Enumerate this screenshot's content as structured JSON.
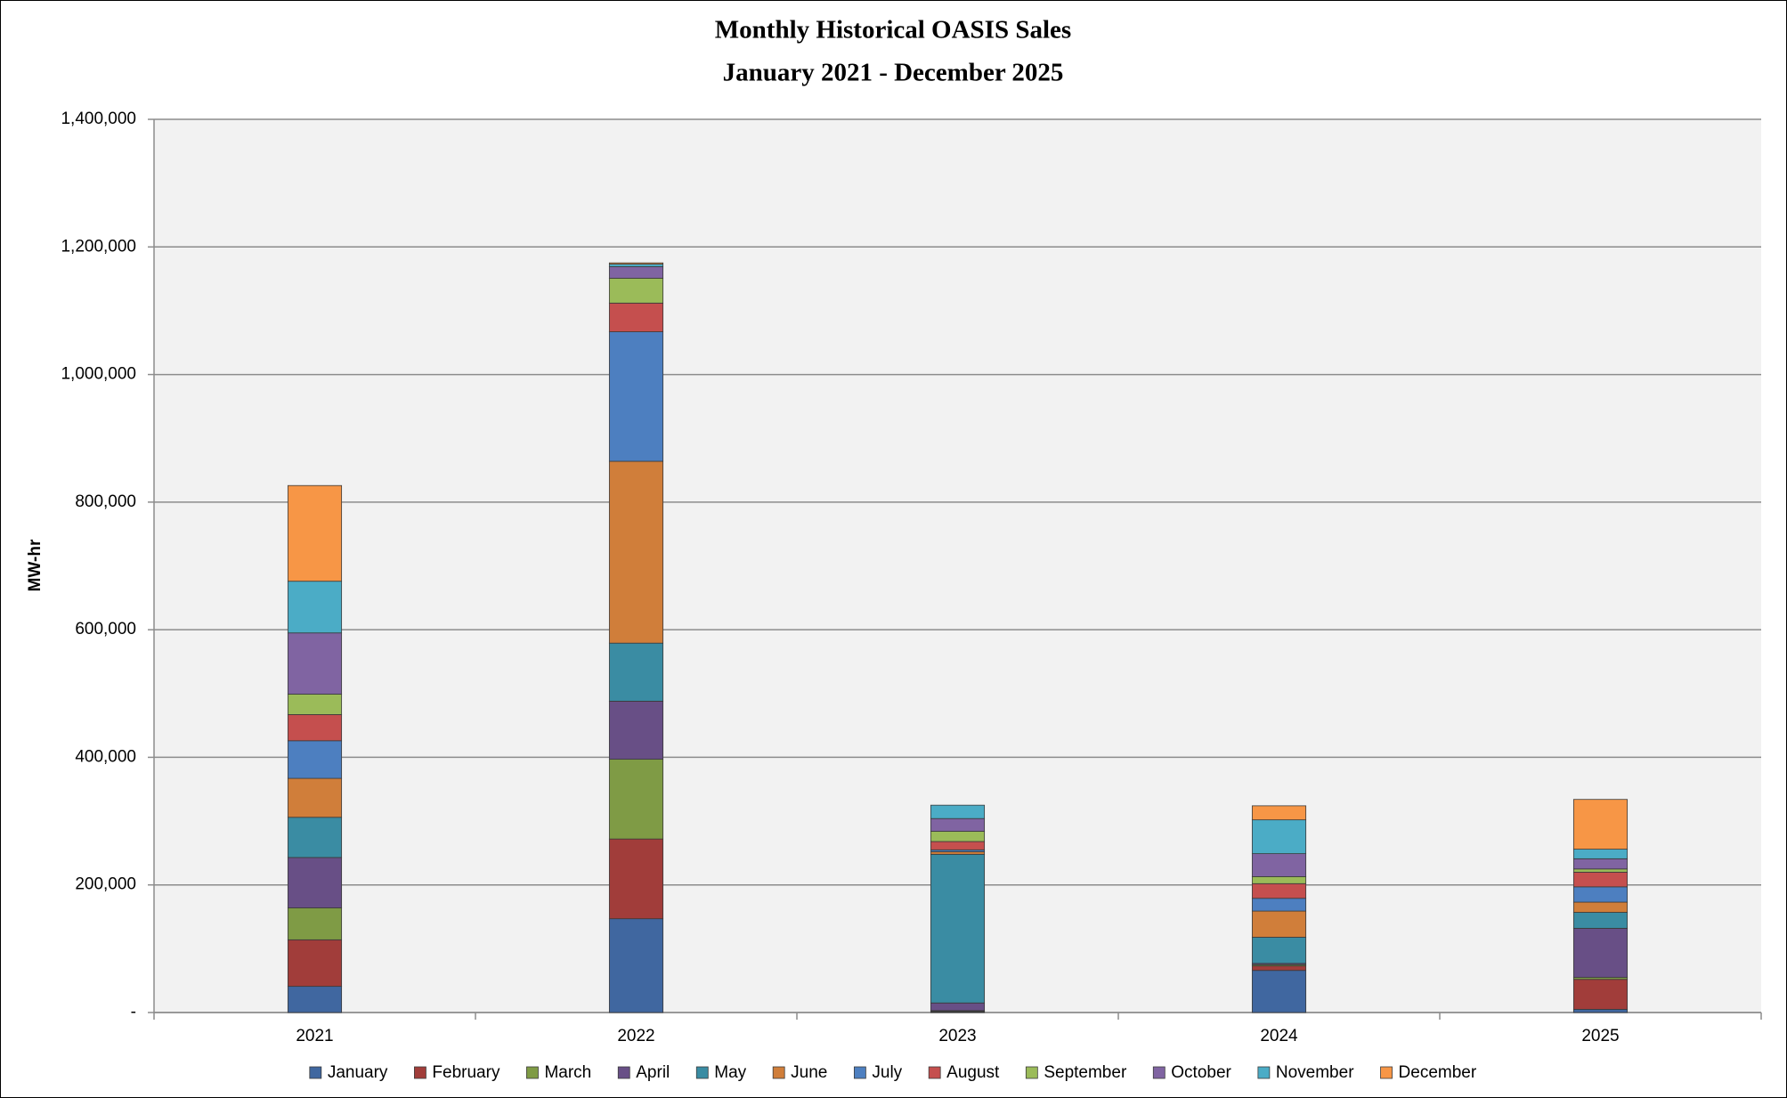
{
  "chart_data": {
    "type": "stacked_bar",
    "title": "Monthly Historical OASIS Sales",
    "subtitle": "January 2021 - December 2025",
    "y_label": "MW-hr",
    "categories": [
      "2021",
      "2022",
      "2023",
      "2024",
      "2025"
    ],
    "series": [
      {
        "name": "January",
        "color": "#4067a0",
        "values": [
          41000,
          147000,
          1000,
          66000,
          5000
        ]
      },
      {
        "name": "February",
        "color": "#a13d3a",
        "values": [
          73000,
          125000,
          1000,
          7000,
          47000
        ]
      },
      {
        "name": "March",
        "color": "#7f9b45",
        "values": [
          50000,
          125000,
          1000,
          2000,
          3000
        ]
      },
      {
        "name": "April",
        "color": "#684f86",
        "values": [
          79000,
          91000,
          12000,
          2000,
          77000
        ]
      },
      {
        "name": "May",
        "color": "#3a8ca3",
        "values": [
          63000,
          91000,
          233000,
          41000,
          25000
        ]
      },
      {
        "name": "June",
        "color": "#d07e3a",
        "values": [
          61000,
          285000,
          4000,
          41000,
          16000
        ]
      },
      {
        "name": "July",
        "color": "#4d7fc0",
        "values": [
          59000,
          203000,
          3000,
          20000,
          24000
        ]
      },
      {
        "name": "August",
        "color": "#c54f4e",
        "values": [
          41000,
          45000,
          13000,
          23000,
          23000
        ]
      },
      {
        "name": "September",
        "color": "#9bbb59",
        "values": [
          32000,
          39000,
          16000,
          11000,
          5000
        ]
      },
      {
        "name": "October",
        "color": "#8064a2",
        "values": [
          96000,
          18000,
          20000,
          36000,
          16000
        ]
      },
      {
        "name": "November",
        "color": "#4bacc6",
        "values": [
          81000,
          4000,
          21000,
          53000,
          15000
        ]
      },
      {
        "name": "December",
        "color": "#f79646",
        "values": [
          150000,
          2000,
          0,
          22000,
          78000
        ]
      }
    ],
    "ylim": [
      0,
      1400000
    ],
    "yticks": [
      {
        "value": 0,
        "label": "-"
      },
      {
        "value": 200000,
        "label": "200,000"
      },
      {
        "value": 400000,
        "label": "400,000"
      },
      {
        "value": 600000,
        "label": "600,000"
      },
      {
        "value": 800000,
        "label": "800,000"
      },
      {
        "value": 1000000,
        "label": "1,000,000"
      },
      {
        "value": 1200000,
        "label": "1,200,000"
      },
      {
        "value": 1400000,
        "label": "1,400,000"
      }
    ],
    "grid": true,
    "legend": "bottom"
  }
}
